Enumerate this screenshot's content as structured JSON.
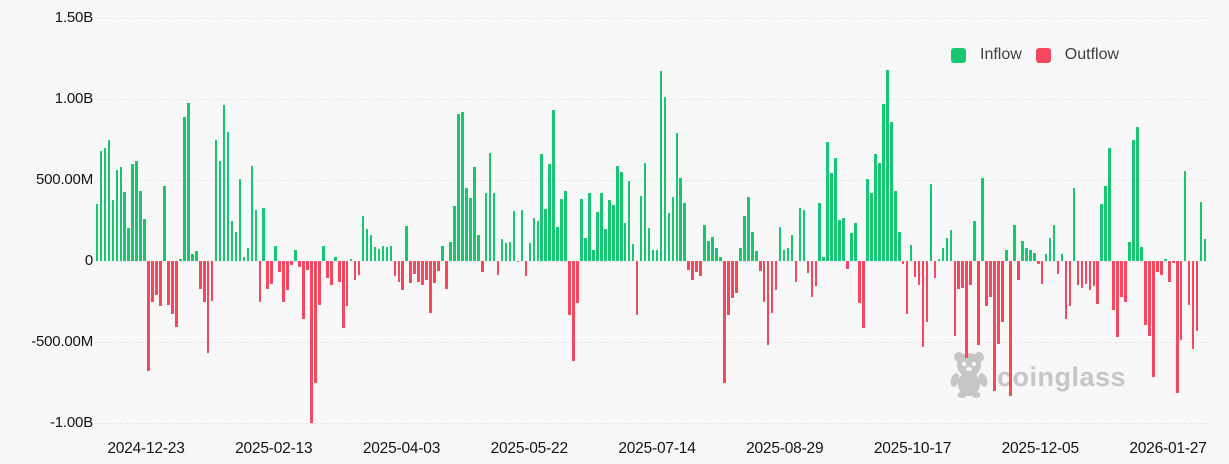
{
  "legend": {
    "items": [
      {
        "id": "inflow",
        "label": "Inflow",
        "color": "#17c671"
      },
      {
        "id": "outflow",
        "label": "Outflow",
        "color": "#f5475d"
      }
    ]
  },
  "watermark": {
    "brand": "coinglass"
  },
  "colors": {
    "inflow": "#17c671",
    "outflow": "#f5475d",
    "background": "#f8f8f8",
    "gridline": "#e7e7e7",
    "axis_text": "#141414",
    "legend_text": "#404040",
    "watermark": "#c6c6c6"
  },
  "chart_data": {
    "type": "bar",
    "values_unit": "millions",
    "legend_entries": [
      "Inflow",
      "Outflow"
    ],
    "series_encoding": {
      "positive": "Inflow",
      "negative": "Outflow"
    },
    "layout": {
      "legend_position": "top-right",
      "grid": "horizontal-dashed",
      "bar_gap": "thin"
    },
    "y_axis": {
      "tick_labels": [
        "1.50B",
        "1.00B",
        "500.00M",
        "0",
        "-500.00M",
        "-1.00B"
      ],
      "tick_values_millions": [
        1500,
        1000,
        500,
        0,
        -500,
        -1000
      ],
      "range_millions": [
        -1150,
        1610
      ]
    },
    "x_axis": {
      "tick_labels": [
        "2024-12-23",
        "2025-02-13",
        "2025-04-03",
        "2025-05-22",
        "2025-07-14",
        "2025-08-29",
        "2025-10-17",
        "2025-12-05",
        "2026-01-27"
      ]
    },
    "values_millions": [
      350,
      680,
      695,
      745,
      375,
      560,
      580,
      425,
      205,
      600,
      620,
      435,
      260,
      -680,
      -250,
      -210,
      -280,
      465,
      -270,
      -330,
      -410,
      10,
      890,
      975,
      45,
      60,
      -170,
      -255,
      -570,
      -245,
      745,
      615,
      960,
      795,
      245,
      180,
      505,
      25,
      80,
      585,
      315,
      -250,
      330,
      -175,
      -140,
      90,
      -70,
      -250,
      -180,
      -25,
      70,
      -35,
      -360,
      -55,
      -1000,
      -755,
      -270,
      90,
      -105,
      -150,
      25,
      -130,
      -415,
      -280,
      15,
      -115,
      -85,
      275,
      200,
      160,
      85,
      75,
      90,
      85,
      90,
      -95,
      -130,
      -180,
      215,
      -135,
      -80,
      -130,
      -150,
      -115,
      -320,
      -135,
      -60,
      90,
      -175,
      120,
      340,
      910,
      920,
      450,
      390,
      580,
      160,
      -65,
      420,
      665,
      420,
      -85,
      135,
      110,
      120,
      310,
      -5,
      315,
      -95,
      110,
      265,
      245,
      660,
      320,
      600,
      930,
      210,
      380,
      430,
      -335,
      -620,
      -260,
      380,
      145,
      420,
      70,
      305,
      420,
      200,
      375,
      345,
      585,
      550,
      235,
      495,
      105,
      -335,
      400,
      605,
      205,
      70,
      65,
      1170,
      1015,
      295,
      395,
      790,
      515,
      355,
      -55,
      -115,
      -65,
      -95,
      220,
      125,
      150,
      80,
      25,
      -755,
      -335,
      -230,
      -200,
      80,
      275,
      395,
      180,
      60,
      -60,
      -250,
      -520,
      -320,
      -180,
      210,
      70,
      80,
      160,
      -130,
      325,
      315,
      -75,
      -220,
      -155,
      360,
      25,
      735,
      545,
      635,
      255,
      265,
      -50,
      170,
      235,
      -260,
      -415,
      505,
      420,
      660,
      605,
      970,
      1180,
      860,
      435,
      180,
      -20,
      -325,
      100,
      -100,
      -150,
      -530,
      -375,
      475,
      -105,
      15,
      80,
      145,
      190,
      -465,
      -170,
      -165,
      -600,
      -150,
      245,
      -520,
      515,
      -280,
      -225,
      -805,
      -510,
      -375,
      70,
      -835,
      225,
      -115,
      125,
      80,
      65,
      50,
      -20,
      -140,
      45,
      145,
      220,
      -80,
      45,
      -360,
      -280,
      450,
      -150,
      -165,
      -140,
      -180,
      -155,
      -265,
      350,
      465,
      695,
      -305,
      -470,
      -220,
      -255,
      120,
      745,
      830,
      85,
      -395,
      -465,
      -715,
      -70,
      -85,
      10,
      -130,
      -15,
      -815,
      -490,
      555,
      -270,
      -545,
      -435,
      365,
      135
    ]
  }
}
